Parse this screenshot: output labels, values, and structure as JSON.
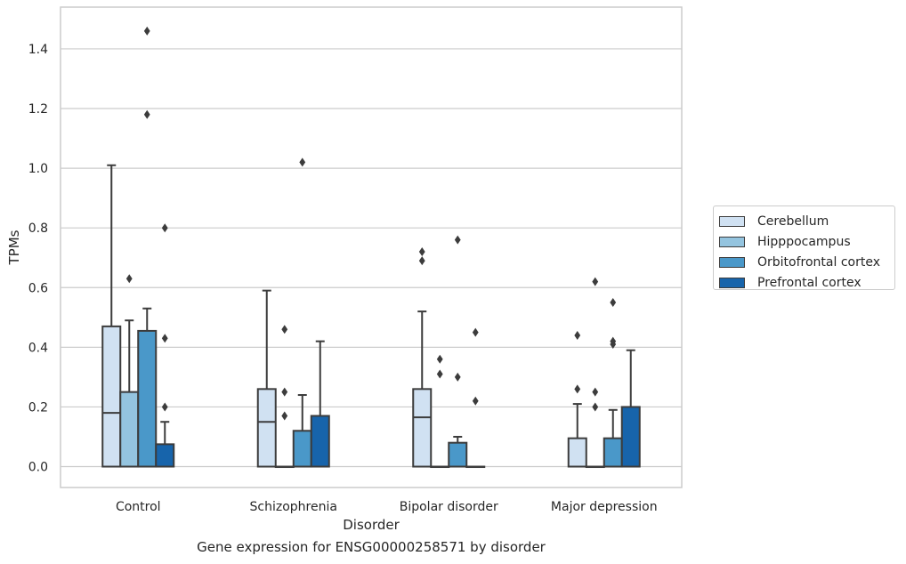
{
  "caption": "Gene expression for ENSG00000258571 by disorder",
  "chart_data": {
    "type": "box",
    "xlabel": "Disorder",
    "ylabel": "TPMs",
    "ylim": [
      -0.07,
      1.54
    ],
    "yticks": [
      0.0,
      0.2,
      0.4,
      0.6,
      0.8,
      1.0,
      1.2,
      1.4
    ],
    "ytick_labels": [
      "0.0",
      "0.2",
      "0.4",
      "0.6",
      "0.8",
      "1.0",
      "1.2",
      "1.4"
    ],
    "grid": true,
    "legend_position": "right",
    "categories": [
      "Control",
      "Schizophrenia",
      "Bipolar disorder",
      "Major depression"
    ],
    "series": [
      {
        "name": "Cerebellum",
        "color": "#d0e1f2",
        "boxes": [
          {
            "q1": 0.0,
            "median": 0.18,
            "q3": 0.47,
            "whisker_low": 0.0,
            "whisker_high": 1.01,
            "outliers": []
          },
          {
            "q1": 0.0,
            "median": 0.15,
            "q3": 0.26,
            "whisker_low": 0.0,
            "whisker_high": 0.59,
            "outliers": []
          },
          {
            "q1": 0.0,
            "median": 0.165,
            "q3": 0.26,
            "whisker_low": 0.0,
            "whisker_high": 0.52,
            "outliers": [
              0.72,
              0.69
            ]
          },
          {
            "q1": 0.0,
            "median": 0.0,
            "q3": 0.095,
            "whisker_low": 0.0,
            "whisker_high": 0.21,
            "outliers": [
              0.44,
              0.26
            ]
          }
        ]
      },
      {
        "name": "Hipppocampus",
        "color": "#94c4df",
        "boxes": [
          {
            "q1": 0.0,
            "median": 0.0,
            "q3": 0.25,
            "whisker_low": 0.0,
            "whisker_high": 0.49,
            "outliers": [
              0.63
            ]
          },
          {
            "q1": 0.0,
            "median": 0.0,
            "q3": 0.0,
            "whisker_low": 0.0,
            "whisker_high": 0.0,
            "outliers": [
              0.46,
              0.25,
              0.17
            ]
          },
          {
            "q1": 0.0,
            "median": 0.0,
            "q3": 0.0,
            "whisker_low": 0.0,
            "whisker_high": 0.0,
            "outliers": [
              0.36,
              0.31
            ]
          },
          {
            "q1": 0.0,
            "median": 0.0,
            "q3": 0.0,
            "whisker_low": 0.0,
            "whisker_high": 0.0,
            "outliers": [
              0.62,
              0.25,
              0.2
            ]
          }
        ]
      },
      {
        "name": "Orbitofrontal cortex",
        "color": "#4a98c9",
        "boxes": [
          {
            "q1": 0.0,
            "median": 0.0,
            "q3": 0.455,
            "whisker_low": 0.0,
            "whisker_high": 0.53,
            "outliers": [
              1.46,
              1.18
            ]
          },
          {
            "q1": 0.0,
            "median": 0.0,
            "q3": 0.12,
            "whisker_low": 0.0,
            "whisker_high": 0.24,
            "outliers": [
              1.02
            ]
          },
          {
            "q1": 0.0,
            "median": 0.0,
            "q3": 0.08,
            "whisker_low": 0.0,
            "whisker_high": 0.1,
            "outliers": [
              0.76,
              0.3
            ]
          },
          {
            "q1": 0.0,
            "median": 0.0,
            "q3": 0.095,
            "whisker_low": 0.0,
            "whisker_high": 0.19,
            "outliers": [
              0.55,
              0.42,
              0.41
            ]
          }
        ]
      },
      {
        "name": "Prefrontal cortex",
        "color": "#1764ab",
        "boxes": [
          {
            "q1": 0.0,
            "median": 0.0,
            "q3": 0.075,
            "whisker_low": 0.0,
            "whisker_high": 0.15,
            "outliers": [
              0.8,
              0.43,
              0.2
            ]
          },
          {
            "q1": 0.0,
            "median": 0.0,
            "q3": 0.17,
            "whisker_low": 0.0,
            "whisker_high": 0.42,
            "outliers": []
          },
          {
            "q1": 0.0,
            "median": 0.0,
            "q3": 0.0,
            "whisker_low": 0.0,
            "whisker_high": 0.0,
            "outliers": [
              0.45,
              0.22
            ]
          },
          {
            "q1": 0.0,
            "median": 0.0,
            "q3": 0.2,
            "whisker_low": 0.0,
            "whisker_high": 0.39,
            "outliers": []
          }
        ]
      }
    ]
  }
}
